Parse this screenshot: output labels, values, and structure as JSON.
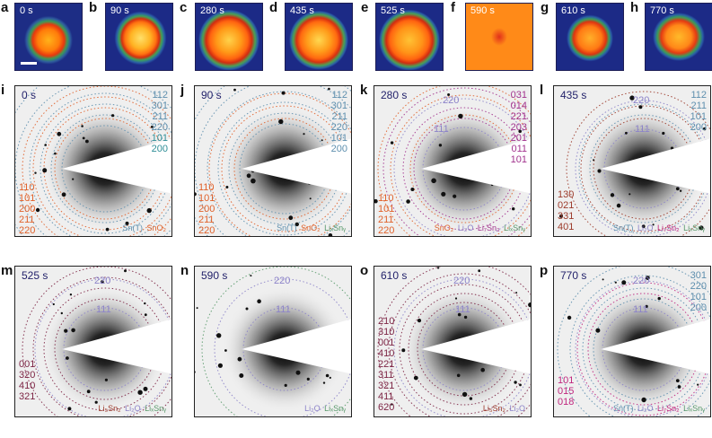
{
  "colors": {
    "sn_t": "#5e8fae",
    "sno2": "#e0612a",
    "lixsny": "#5a9a6c",
    "li2o": "#8c83c9",
    "li7sn2": "#c0277f",
    "li5sn2": "#9c3a2a",
    "li22sn5": "#7d2545",
    "lisn_k": "#a2338e",
    "teal": "#2f8e97",
    "purple": "#6a58c4",
    "time_label": "#23226b"
  },
  "map_panels": [
    {
      "letter": "a",
      "time": "0 s",
      "scalebar": true
    },
    {
      "letter": "b",
      "time": "90 s"
    },
    {
      "letter": "c",
      "time": "280 s"
    },
    {
      "letter": "d",
      "time": "435 s"
    },
    {
      "letter": "e",
      "time": "525 s"
    },
    {
      "letter": "f",
      "time": "590 s"
    },
    {
      "letter": "g",
      "time": "610 s"
    },
    {
      "letter": "h",
      "time": "770 s"
    }
  ],
  "diffraction_panels": [
    {
      "letter": "i",
      "time": "0 s",
      "upper_right": [
        {
          "text": "112",
          "color": "#5e8fae"
        },
        {
          "text": "301",
          "color": "#5e8fae"
        },
        {
          "text": "211",
          "color": "#5e8fae"
        },
        {
          "text": "220",
          "color": "#5e8fae"
        },
        {
          "text": "101",
          "color": "#2f8e97"
        },
        {
          "text": "200",
          "color": "#2f8e97"
        }
      ],
      "lower_left": [
        {
          "text": "110",
          "color": "#e0612a"
        },
        {
          "text": "101",
          "color": "#e0612a"
        },
        {
          "text": "200",
          "color": "#e0612a"
        },
        {
          "text": "211",
          "color": "#e0612a"
        },
        {
          "text": "220",
          "color": "#e0612a"
        }
      ],
      "legend": [
        {
          "text": "Sn(T)",
          "color": "#5e8fae"
        },
        {
          "text": "SnO₂",
          "color": "#e0612a"
        }
      ]
    },
    {
      "letter": "j",
      "time": "90 s",
      "upper_right": [
        {
          "text": "112",
          "color": "#5e8fae"
        },
        {
          "text": "301",
          "color": "#5e8fae"
        },
        {
          "text": "211",
          "color": "#5e8fae"
        },
        {
          "text": "220",
          "color": "#5e8fae"
        },
        {
          "text": "101",
          "color": "#5e8fae"
        },
        {
          "text": "200",
          "color": "#5e8fae"
        }
      ],
      "lower_left": [
        {
          "text": "110",
          "color": "#e0612a"
        },
        {
          "text": "101",
          "color": "#e0612a"
        },
        {
          "text": "200",
          "color": "#e0612a"
        },
        {
          "text": "211",
          "color": "#e0612a"
        },
        {
          "text": "220",
          "color": "#e0612a"
        }
      ],
      "legend": [
        {
          "text": "Sn(T)",
          "color": "#5e8fae"
        },
        {
          "text": "SnO₂",
          "color": "#e0612a"
        },
        {
          "text": "LiₓSnᵧ",
          "color": "#5a9a6c"
        }
      ]
    },
    {
      "letter": "k",
      "time": "280 s",
      "center_top": {
        "text": "220",
        "color": "#8c83c9"
      },
      "center_mid": {
        "text": "111",
        "color": "#8c83c9"
      },
      "upper_right": [
        {
          "text": "031",
          "color": "#a2338e"
        },
        {
          "text": "014",
          "color": "#a2338e"
        },
        {
          "text": "221",
          "color": "#a2338e"
        },
        {
          "text": "203",
          "color": "#a2338e"
        },
        {
          "text": "201",
          "color": "#a2338e"
        },
        {
          "text": "011",
          "color": "#a2338e"
        },
        {
          "text": "101",
          "color": "#a2338e"
        }
      ],
      "lower_left": [
        {
          "text": "110",
          "color": "#e0612a"
        },
        {
          "text": "101",
          "color": "#e0612a"
        },
        {
          "text": "211",
          "color": "#e0612a"
        },
        {
          "text": "220",
          "color": "#e0612a"
        }
      ],
      "legend": [
        {
          "text": "SnO₂",
          "color": "#e0612a"
        },
        {
          "text": "Li₂O",
          "color": "#8c83c9"
        },
        {
          "text": "Li₇Sn₃",
          "color": "#a2338e"
        },
        {
          "text": "LiₓSnᵧ",
          "color": "#5a9a6c"
        }
      ]
    },
    {
      "letter": "l",
      "time": "435 s",
      "center_top": {
        "text": "220",
        "color": "#8c83c9"
      },
      "center_mid": {
        "text": "111",
        "color": "#8c83c9"
      },
      "upper_right": [
        {
          "text": "112",
          "color": "#5e8fae"
        },
        {
          "text": "211",
          "color": "#5e8fae"
        },
        {
          "text": "101",
          "color": "#5e8fae"
        },
        {
          "text": "200",
          "color": "#5e8fae"
        }
      ],
      "lower_left": [
        {
          "text": "130",
          "color": "#9c3a2a"
        },
        {
          "text": "021",
          "color": "#9c3a2a"
        },
        {
          "text": "331",
          "color": "#9c3a2a"
        },
        {
          "text": "401",
          "color": "#9c3a2a"
        }
      ],
      "legend": [
        {
          "text": "Sn(T)",
          "color": "#5e8fae"
        },
        {
          "text": "Li₂O",
          "color": "#8c83c9"
        },
        {
          "text": "Li₇Sn₂",
          "color": "#c0277f"
        },
        {
          "text": "LiₓSnᵧ",
          "color": "#5a9a6c"
        }
      ]
    },
    {
      "letter": "m",
      "time": "525 s",
      "center_top": {
        "text": "220",
        "color": "#8c83c9"
      },
      "center_mid": {
        "text": "111",
        "color": "#8c83c9"
      },
      "upper_right": [],
      "lower_left": [
        {
          "text": "001",
          "color": "#7d2545"
        },
        {
          "text": "320",
          "color": "#7d2545"
        },
        {
          "text": "410",
          "color": "#7d2545"
        },
        {
          "text": "321",
          "color": "#7d2545"
        }
      ],
      "legend": [
        {
          "text": "Li₅Sn₂",
          "color": "#9c3a2a"
        },
        {
          "text": "Li₂O",
          "color": "#8c83c9"
        },
        {
          "text": "LiₓSnᵧ",
          "color": "#5a9a6c"
        }
      ]
    },
    {
      "letter": "n",
      "time": "590 s",
      "center_top": {
        "text": "220",
        "color": "#8c83c9"
      },
      "center_mid": {
        "text": "111",
        "color": "#8c83c9"
      },
      "upper_right": [],
      "lower_left": [],
      "legend": [
        {
          "text": "Li₂O",
          "color": "#8c83c9"
        },
        {
          "text": "LiₓSnᵧ",
          "color": "#5a9a6c"
        }
      ]
    },
    {
      "letter": "o",
      "time": "610 s",
      "center_top": {
        "text": "220",
        "color": "#8c83c9"
      },
      "center_mid": {
        "text": "111",
        "color": "#8c83c9"
      },
      "upper_right": [],
      "lower_left": [
        {
          "text": "210",
          "color": "#7d2545"
        },
        {
          "text": "310",
          "color": "#7d2545"
        },
        {
          "text": "001",
          "color": "#7d2545"
        },
        {
          "text": "410",
          "color": "#7d2545"
        },
        {
          "text": "221",
          "color": "#7d2545"
        },
        {
          "text": "311",
          "color": "#7d2545"
        },
        {
          "text": "321",
          "color": "#7d2545"
        },
        {
          "text": "411",
          "color": "#7d2545"
        },
        {
          "text": "620",
          "color": "#7d2545"
        }
      ],
      "legend": [
        {
          "text": "Li₅Sn₂",
          "color": "#9c3a2a"
        },
        {
          "text": "Li₂O",
          "color": "#8c83c9"
        }
      ]
    },
    {
      "letter": "p",
      "time": "770 s",
      "center_top": {
        "text": "220",
        "color": "#8c83c9"
      },
      "center_mid": {
        "text": "111",
        "color": "#8c83c9"
      },
      "upper_right": [
        {
          "text": "301",
          "color": "#5e8fae"
        },
        {
          "text": "220",
          "color": "#5e8fae"
        },
        {
          "text": "101",
          "color": "#5e8fae"
        },
        {
          "text": "200",
          "color": "#5e8fae"
        }
      ],
      "lower_left": [
        {
          "text": "101",
          "color": "#c0277f"
        },
        {
          "text": "015",
          "color": "#c0277f"
        },
        {
          "text": "018",
          "color": "#c0277f"
        }
      ],
      "legend": [
        {
          "text": "Sn(T)",
          "color": "#5e8fae"
        },
        {
          "text": "Li₂O",
          "color": "#8c83c9"
        },
        {
          "text": "Li₇Sn₂",
          "color": "#c0277f"
        },
        {
          "text": "LiₓSnᵧ",
          "color": "#5a9a6c"
        }
      ]
    }
  ]
}
